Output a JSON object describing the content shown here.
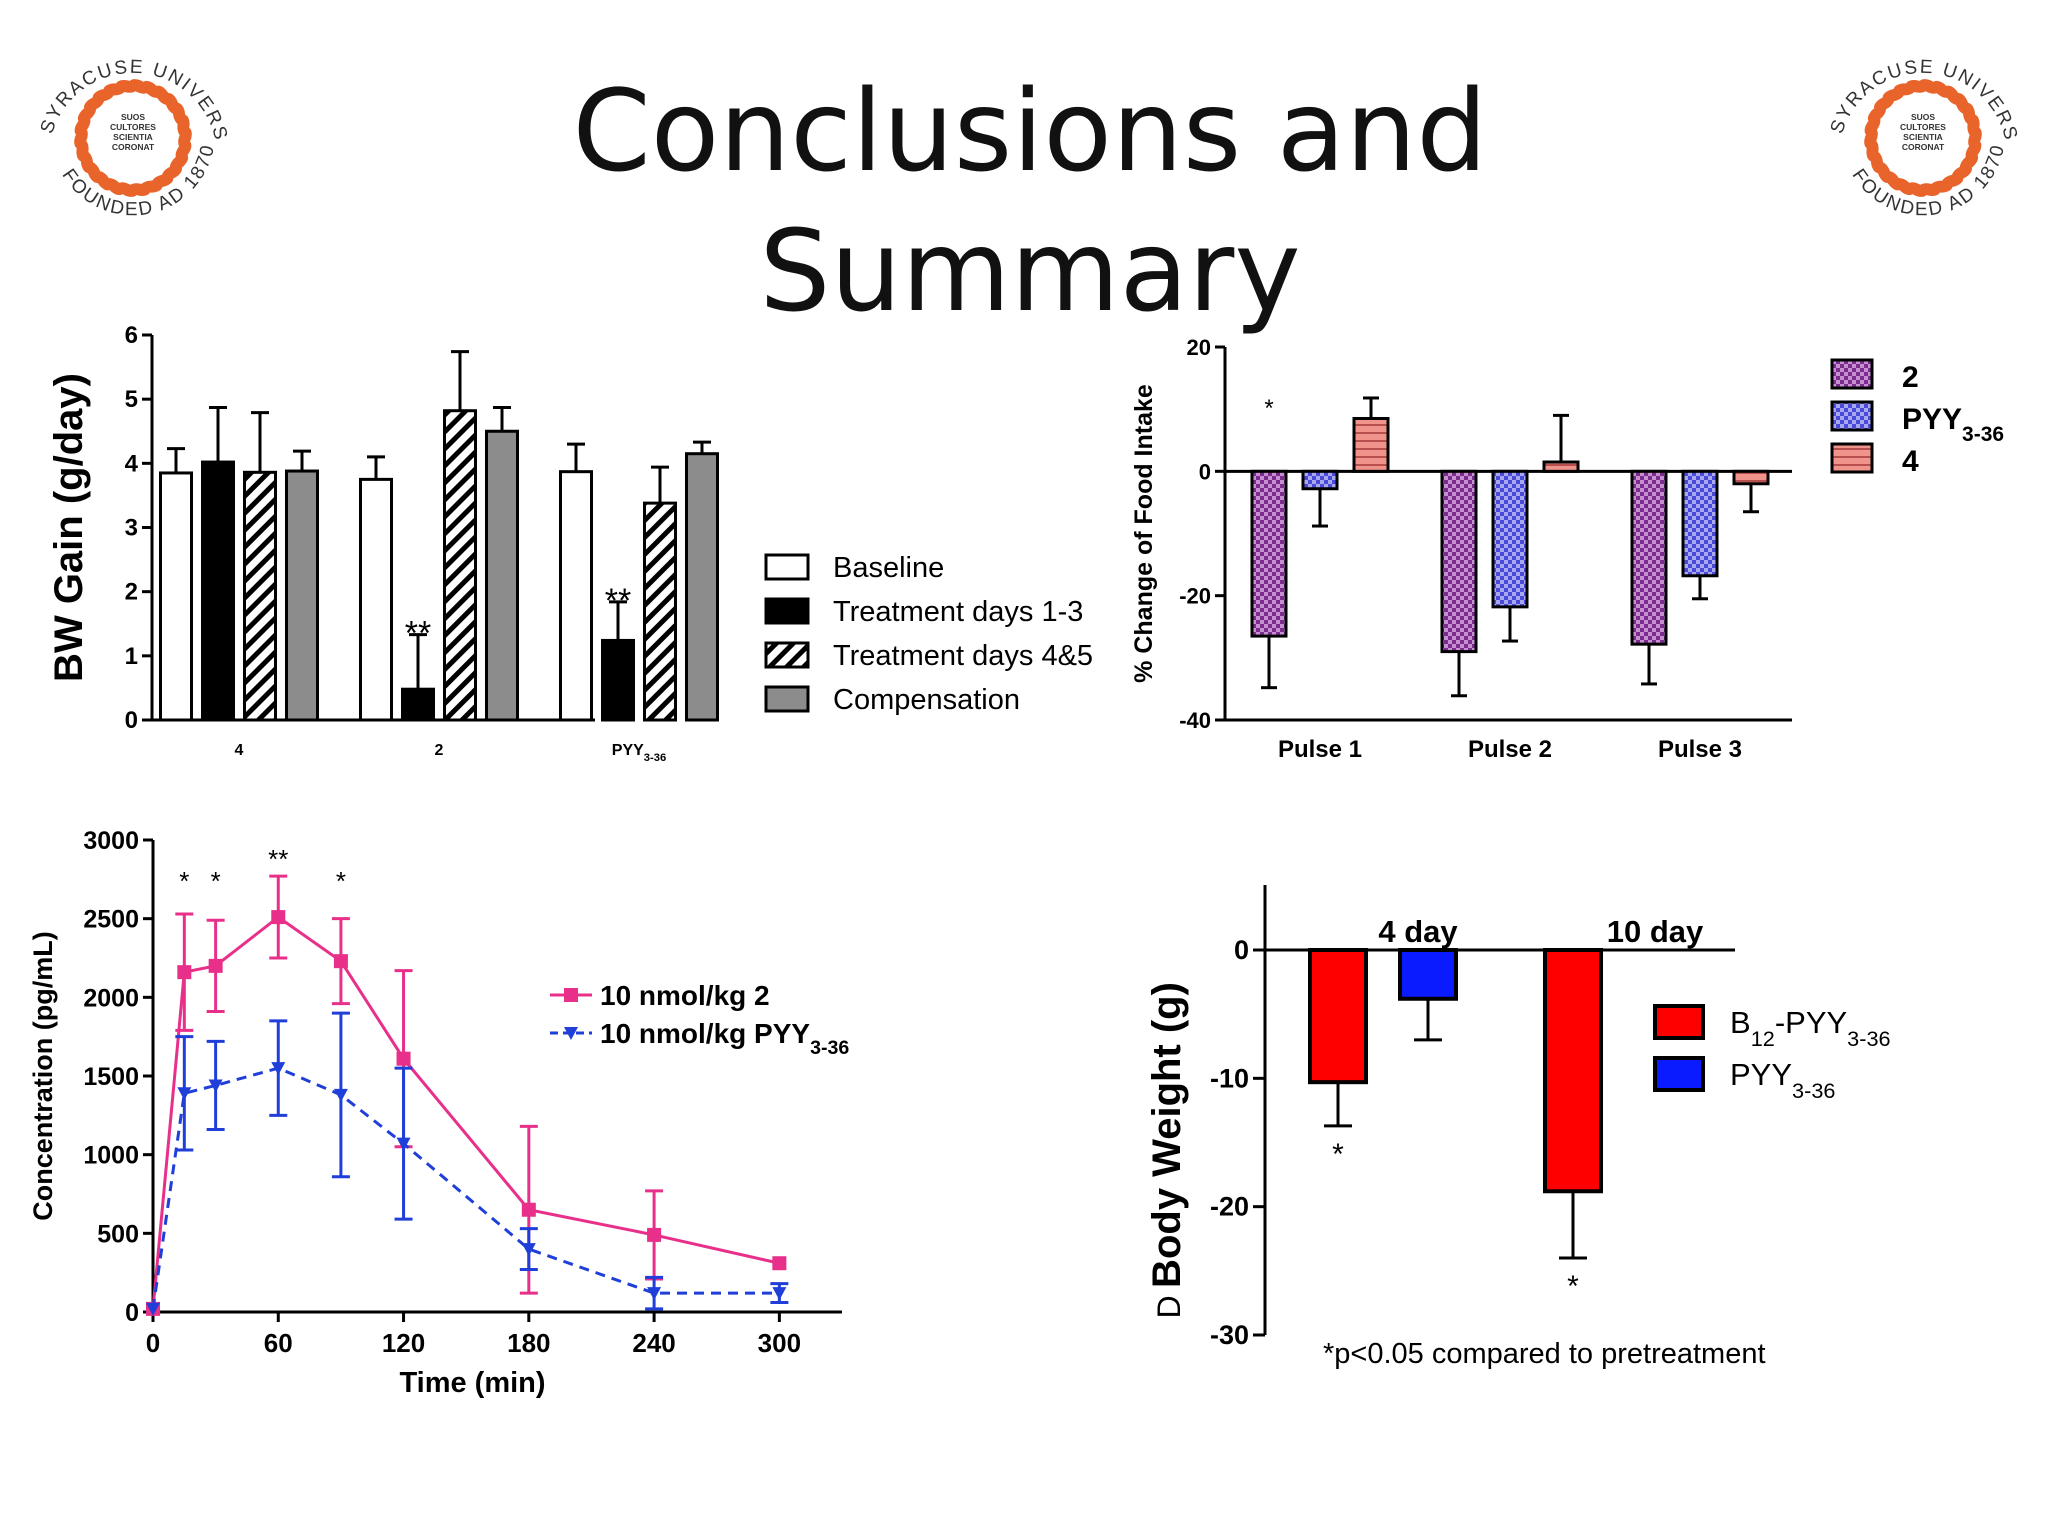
{
  "title": "Conclusions and Summary",
  "logo": {
    "text": "SYRACUSE UNIVERSITY",
    "founded": "FOUNDED AD 1870",
    "motto": [
      "SUOS",
      "CULTORES",
      "SCIENTIA",
      "CORONAT"
    ],
    "color": "#e8642a"
  },
  "chart_data": [
    {
      "id": "bw-gain",
      "type": "bar",
      "ylabel": "BW Gain (g/day)",
      "ylim": [
        0,
        6
      ],
      "yticks": [
        "0",
        "1",
        "2",
        "3",
        "4",
        "5",
        "6"
      ],
      "categories": [
        {
          "label": "4",
          "sub": ""
        },
        {
          "label": "2",
          "sub": ""
        },
        {
          "label": "PYY",
          "sub": "3-36"
        }
      ],
      "series": [
        {
          "name": "Baseline",
          "fill": "white",
          "values": [
            3.85,
            3.75,
            3.87
          ],
          "err": [
            0.38,
            0.35,
            0.43
          ]
        },
        {
          "name": "Treatment days 1-3",
          "fill": "black",
          "values": [
            4.02,
            0.48,
            1.24
          ],
          "err": [
            0.85,
            0.85,
            0.6
          ]
        },
        {
          "name": "Treatment days 4&5",
          "fill": "hatch",
          "values": [
            3.86,
            4.82,
            3.38
          ],
          "err": [
            0.93,
            0.92,
            0.56
          ]
        },
        {
          "name": "Compensation",
          "fill": "gray",
          "values": [
            3.88,
            4.5,
            4.15
          ],
          "err": [
            0.31,
            0.37,
            0.18
          ]
        }
      ],
      "annotations": [
        {
          "category": 1,
          "series": 1,
          "text": "**"
        },
        {
          "category": 2,
          "series": 1,
          "text": "**"
        }
      ],
      "legend": "right"
    },
    {
      "id": "food-intake",
      "type": "bar",
      "ylabel": "% Change of  Food Intake",
      "ylim": [
        -40,
        20
      ],
      "yticks": [
        "-40",
        "-20",
        "0",
        "20"
      ],
      "categories": [
        "Pulse 1",
        "Pulse 2",
        "Pulse 3"
      ],
      "series": [
        {
          "name": "2",
          "sub": "",
          "color": "#7b2c8e",
          "values": [
            -26.5,
            -29,
            -27.8
          ],
          "err": [
            8.3,
            7.1,
            6.4
          ]
        },
        {
          "name": "PYY",
          "sub": "3-36",
          "color": "#4a4ad8",
          "values": [
            -2.8,
            -21.8,
            -16.8
          ],
          "err": [
            6.0,
            5.5,
            3.7
          ]
        },
        {
          "name": "4",
          "sub": "",
          "color": "#f0938a",
          "values": [
            8.5,
            1.5,
            -2.0
          ],
          "err": [
            3.3,
            7.5,
            4.5
          ]
        }
      ],
      "annotations": [
        {
          "category": 0,
          "series": 0,
          "text": "*"
        }
      ],
      "legend": "right"
    },
    {
      "id": "concentration",
      "type": "line",
      "xlabel": "Time (min)",
      "ylabel": "Concentration (pg/mL)",
      "xlim": [
        0,
        330
      ],
      "ylim": [
        0,
        3000
      ],
      "xticks": [
        "0",
        "60",
        "120",
        "180",
        "240",
        "300"
      ],
      "yticks": [
        "0",
        "500",
        "1000",
        "1500",
        "2000",
        "2500",
        "3000"
      ],
      "series": [
        {
          "name": "10 nmol/kg 2",
          "sub": "",
          "color": "#e8308a",
          "marker": "square",
          "dash": false,
          "x": [
            0,
            15,
            30,
            60,
            90,
            120,
            180,
            240,
            300
          ],
          "y": [
            20,
            2160,
            2200,
            2510,
            2230,
            1610,
            650,
            490,
            310
          ],
          "err": [
            0,
            370,
            290,
            260,
            270,
            560,
            530,
            280,
            0
          ]
        },
        {
          "name": "10 nmol/kg PYY",
          "sub": "3-36",
          "color": "#1f3fd8",
          "marker": "triangle-down",
          "dash": true,
          "x": [
            0,
            15,
            30,
            60,
            90,
            120,
            180,
            240,
            300
          ],
          "y": [
            20,
            1390,
            1440,
            1550,
            1380,
            1070,
            400,
            120,
            120
          ],
          "err": [
            0,
            360,
            280,
            300,
            520,
            480,
            130,
            100,
            60
          ]
        }
      ],
      "annotations": [
        {
          "x": 15,
          "text": "*"
        },
        {
          "x": 30,
          "text": "*"
        },
        {
          "x": 60,
          "text": "**"
        },
        {
          "x": 90,
          "text": "*"
        }
      ],
      "legend": "right"
    },
    {
      "id": "body-weight",
      "type": "bar",
      "ylabel": "Body  Weight (g)",
      "ylabel_prefix": "D",
      "ylim": [
        -30,
        0
      ],
      "yticks": [
        "0",
        "-10",
        "-20",
        "-30"
      ],
      "categories": [
        "4 day",
        "10 day"
      ],
      "series": [
        {
          "name": "B",
          "parts": [
            "B",
            "12",
            "-PYY",
            "3-36"
          ],
          "color": "#ff0000",
          "values": [
            -10.3,
            -18.8
          ],
          "err": [
            3.4,
            5.2
          ]
        },
        {
          "name": "PYY",
          "parts": [
            "PYY",
            "3-36"
          ],
          "color": "#0a1cff",
          "values": [
            -3.8,
            null
          ],
          "err": [
            3.2,
            null
          ]
        }
      ],
      "annotations": [
        {
          "category": 0,
          "series": 0,
          "text": "*"
        },
        {
          "category": 1,
          "series": 0,
          "text": "*"
        }
      ],
      "footnote": "*p<0.05 compared to pretreatment",
      "legend": "right"
    }
  ]
}
